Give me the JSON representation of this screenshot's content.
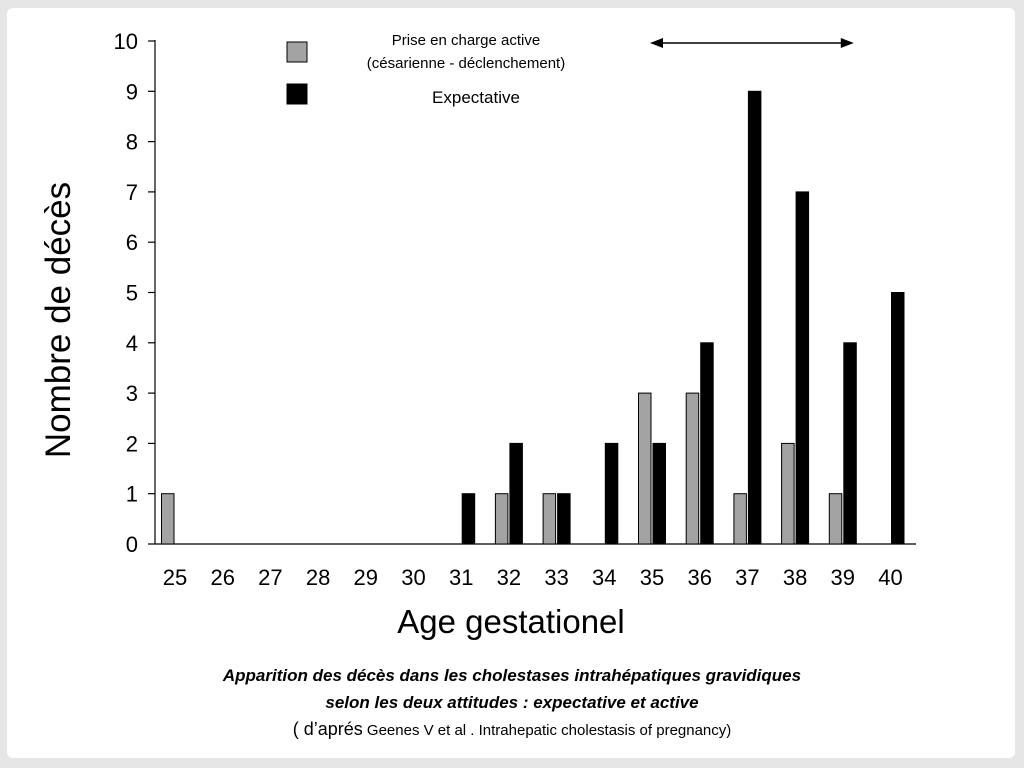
{
  "chart_data": {
    "type": "bar",
    "title": "",
    "xlabel": "Age gestationel",
    "ylabel": "Nombre de décès",
    "ylim": [
      0,
      10
    ],
    "yticks": [
      "0",
      "1",
      "2",
      "3",
      "4",
      "5",
      "6",
      "7",
      "8",
      "9",
      "10"
    ],
    "categories": [
      "25",
      "26",
      "27",
      "28",
      "29",
      "30",
      "31",
      "32",
      "33",
      "34",
      "35",
      "36",
      "37",
      "38",
      "39",
      "40"
    ],
    "series": [
      {
        "name": "Prise en charge active",
        "name_line2": "(césarienne - déclenchement)",
        "color": "#a3a3a3",
        "values": [
          1,
          0,
          0,
          0,
          0,
          0,
          0,
          1,
          1,
          0,
          3,
          3,
          1,
          2,
          1,
          0
        ]
      },
      {
        "name": "Expectative",
        "color": "#000000",
        "values": [
          0,
          0,
          0,
          0,
          0,
          0,
          1,
          2,
          1,
          2,
          2,
          4,
          9,
          7,
          4,
          5
        ]
      }
    ],
    "arrow_range": [
      "35",
      "39"
    ],
    "legend_position": "top-left"
  },
  "caption": {
    "line1": "Apparition des décès dans les cholestases intrahépatiques gravidiques",
    "line2": "selon les deux attitudes : expectative et active",
    "line3_prefix": "( d’aprés",
    "line3_rest": " Geenes V et al . Intrahepatic cholestasis of pregnancy)"
  }
}
